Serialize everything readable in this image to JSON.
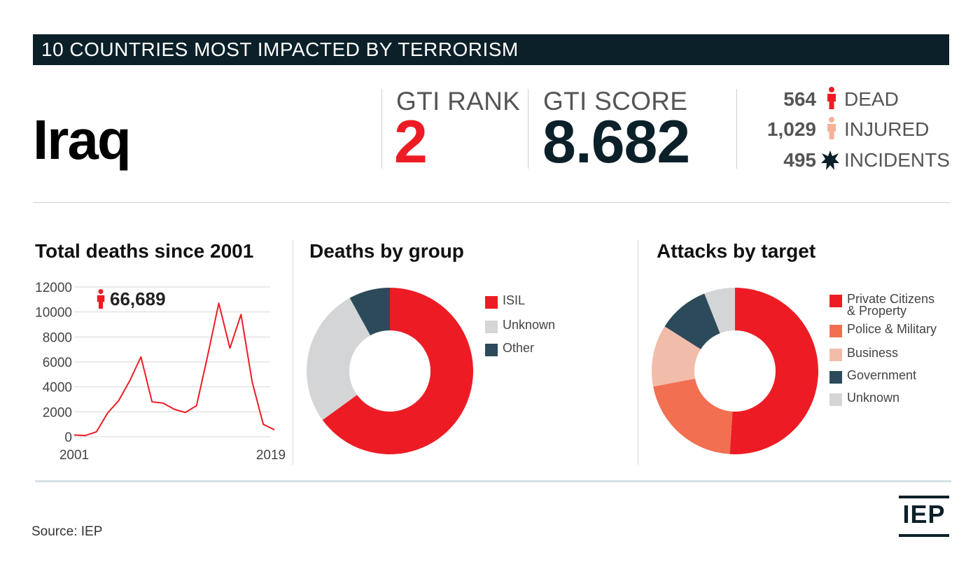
{
  "header": {
    "banner_title": "10 COUNTRIES MOST IMPACTED BY TERRORISM"
  },
  "country": "Iraq",
  "metrics": {
    "rank_label": "GTI RANK",
    "rank_value": "2",
    "score_label": "GTI SCORE",
    "score_value": "8.682"
  },
  "stats": [
    {
      "value": "564",
      "label": "DEAD",
      "icon": "person-icon",
      "color": "#ed1c24"
    },
    {
      "value": "1,029",
      "label": "INJURED",
      "icon": "person-icon",
      "color": "#f6b197"
    },
    {
      "value": "495",
      "label": "INCIDENTS",
      "icon": "explosion-icon",
      "color": "#0c2029"
    }
  ],
  "panels": {
    "deaths_title": "Total deaths since 2001",
    "group_title": "Deaths by group",
    "target_title": "Attacks by target"
  },
  "source": "Source: IEP",
  "logo": "IEP",
  "chart_data": [
    {
      "type": "line",
      "title": "Total deaths since 2001",
      "x": [
        2001,
        2002,
        2003,
        2004,
        2005,
        2006,
        2007,
        2008,
        2009,
        2010,
        2011,
        2012,
        2013,
        2014,
        2015,
        2016,
        2017,
        2018,
        2019
      ],
      "series": [
        {
          "values": [
            150,
            100,
            400,
            1900,
            2900,
            4500,
            6400,
            2800,
            2700,
            2200,
            1950,
            2500,
            6500,
            10700,
            7100,
            9800,
            4400,
            1000,
            564
          ]
        }
      ],
      "ylim": [
        0,
        12000
      ],
      "yticks": [
        "0",
        "2000",
        "4000",
        "6000",
        "8000",
        "10000",
        "12000"
      ],
      "xtick_labels": [
        "2001",
        "2019"
      ],
      "annotation": "66,689",
      "color": "#ed1c24",
      "grid": true
    },
    {
      "type": "pie",
      "donut": true,
      "title": "Deaths by group",
      "categories": [
        "ISIL",
        "Unknown",
        "Other"
      ],
      "values": [
        65,
        27,
        8
      ],
      "colors": [
        "#ed1c24",
        "#d4d5d6",
        "#2c4a5a"
      ]
    },
    {
      "type": "pie",
      "donut": true,
      "title": "Attacks by target",
      "categories": [
        "Private Citizens & Property",
        "Police & Military",
        "Business",
        "Government",
        "Unknown"
      ],
      "values": [
        51,
        21,
        12,
        10,
        6
      ],
      "colors": [
        "#ed1c24",
        "#f26f52",
        "#f2bcaa",
        "#2c4a5a",
        "#d4d5d6"
      ]
    }
  ]
}
